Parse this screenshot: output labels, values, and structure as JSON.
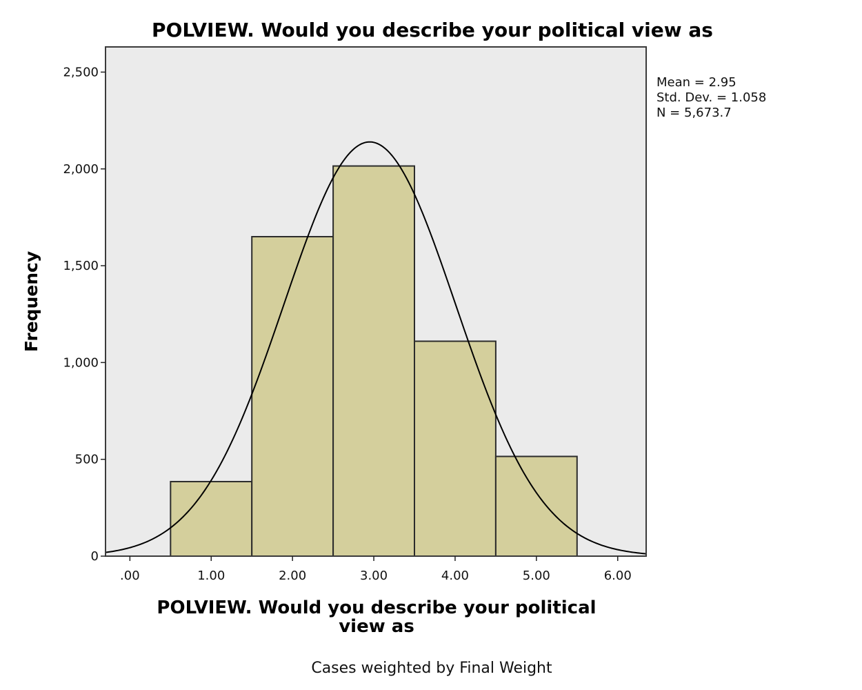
{
  "chart_data": {
    "type": "bar",
    "title": "POLVIEW. Would you describe your political view as",
    "xlabel": "POLVIEW. Would you describe your political view as",
    "xlabel_lines": [
      "POLVIEW. Would you describe your political",
      "view as"
    ],
    "ylabel": "Frequency",
    "footnote": "Cases weighted by Final Weight",
    "xlim": [
      -0.3,
      6.35
    ],
    "ylim": [
      0,
      2630
    ],
    "x_ticks": [
      ".00",
      "1.00",
      "2.00",
      "3.00",
      "4.00",
      "5.00",
      "6.00"
    ],
    "x_tick_values": [
      0,
      1,
      2,
      3,
      4,
      5,
      6
    ],
    "y_ticks": [
      "0",
      "500",
      "1,000",
      "1,500",
      "2,000",
      "2,500"
    ],
    "y_tick_values": [
      0,
      500,
      1000,
      1500,
      2000,
      2500
    ],
    "bins": [
      {
        "x0": 0.5,
        "x1": 1.5,
        "value": 385
      },
      {
        "x0": 1.5,
        "x1": 2.5,
        "value": 1650
      },
      {
        "x0": 2.5,
        "x1": 3.5,
        "value": 2015
      },
      {
        "x0": 3.5,
        "x1": 4.5,
        "value": 1110
      },
      {
        "x0": 4.5,
        "x1": 5.5,
        "value": 515
      }
    ],
    "normal_curve": {
      "mean": 2.95,
      "sd": 1.058,
      "n": 5673.7,
      "bin_width": 1
    },
    "stats_lines": [
      "Mean = 2.95",
      "Std. Dev. = 1.058",
      "N = 5,673.7"
    ],
    "colors": {
      "plot_background": "#ebebeb",
      "bar_fill": "#d4cf9c",
      "bar_stroke": "#2b2b2b",
      "curve": "#000000",
      "frame": "#3a3a3a"
    },
    "grid": false,
    "legend": "none"
  }
}
